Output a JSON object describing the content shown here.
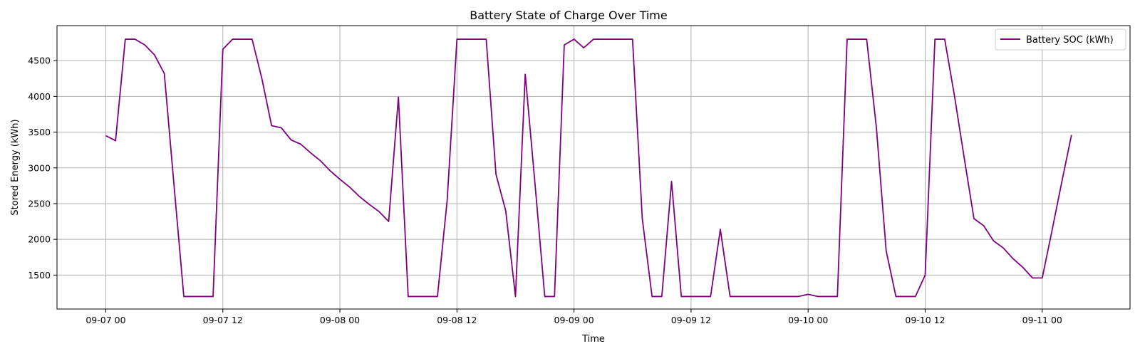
{
  "chart_data": {
    "type": "line",
    "title": "Battery State of Charge Over Time",
    "xlabel": "Time",
    "ylabel": "Stored Energy (kWh)",
    "x_start": "2023-09-07T00:00",
    "x_step_hours": 1,
    "xlim": [
      "2023-09-06T19:00",
      "2023-09-11T09:00"
    ],
    "ylim": [
      1025,
      4990
    ],
    "x_ticks": [
      {
        "label": "09-07 00",
        "value": "2023-09-07T00:00"
      },
      {
        "label": "09-07 12",
        "value": "2023-09-07T12:00"
      },
      {
        "label": "09-08 00",
        "value": "2023-09-08T00:00"
      },
      {
        "label": "09-08 12",
        "value": "2023-09-08T12:00"
      },
      {
        "label": "09-09 00",
        "value": "2023-09-09T00:00"
      },
      {
        "label": "09-09 12",
        "value": "2023-09-09T12:00"
      },
      {
        "label": "09-10 00",
        "value": "2023-09-10T00:00"
      },
      {
        "label": "09-10 12",
        "value": "2023-09-10T12:00"
      },
      {
        "label": "09-11 00",
        "value": "2023-09-11T00:00"
      }
    ],
    "y_ticks": [
      1500,
      2000,
      2500,
      3000,
      3500,
      4000,
      4500
    ],
    "grid": true,
    "legend_position": "top-right",
    "series": [
      {
        "name": "Battery SOC (kWh)",
        "color": "#800080",
        "values": [
          3450,
          3380,
          4800,
          4800,
          4720,
          4580,
          4320,
          2750,
          1200,
          1200,
          1200,
          1200,
          4660,
          4800,
          4800,
          4800,
          4250,
          3590,
          3560,
          3390,
          3330,
          3210,
          3100,
          2960,
          2840,
          2730,
          2600,
          2490,
          2390,
          2250,
          3990,
          1200,
          1200,
          1200,
          1200,
          2550,
          4800,
          4800,
          4800,
          4800,
          2910,
          2400,
          1200,
          4310,
          2780,
          1200,
          1200,
          4720,
          4800,
          4680,
          4800,
          4800,
          4800,
          4800,
          4800,
          2290,
          1200,
          1200,
          2810,
          1200,
          1200,
          1200,
          1200,
          2140,
          1200,
          1200,
          1200,
          1200,
          1200,
          1200,
          1200,
          1200,
          1230,
          1200,
          1200,
          1200,
          4800,
          4800,
          4800,
          3560,
          1840,
          1200,
          1200,
          1200,
          1500,
          4800,
          4800,
          4010,
          3140,
          2290,
          2190,
          1980,
          1880,
          1730,
          1610,
          1460,
          1460,
          2120,
          2800,
          3460
        ]
      }
    ]
  }
}
